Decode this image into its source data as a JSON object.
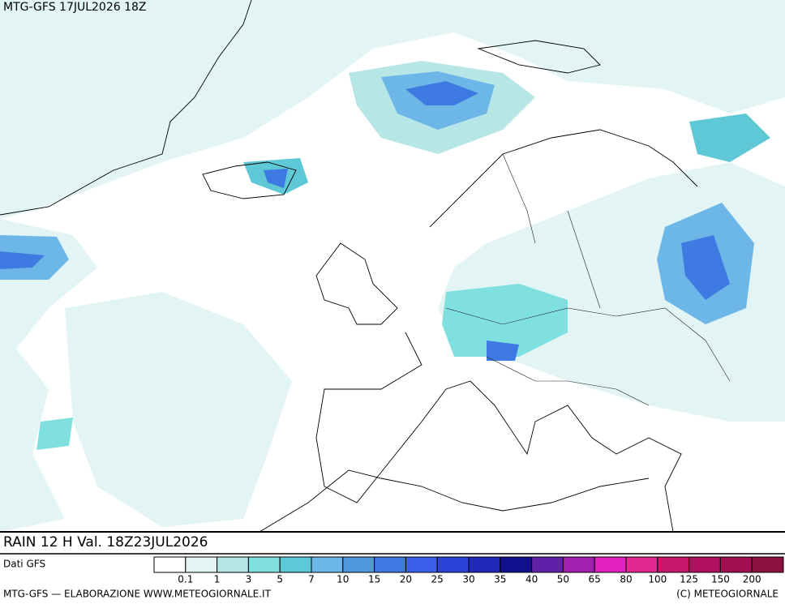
{
  "header": {
    "run": "MTG-GFS 17JUL2026 18Z"
  },
  "title": "RAIN 12 H Val. 18Z23JUL2026",
  "source": "Dati GFS",
  "legend": {
    "labels": [
      "0.1",
      "1",
      "3",
      "5",
      "7",
      "10",
      "15",
      "20",
      "25",
      "30",
      "35",
      "40",
      "50",
      "65",
      "80",
      "100",
      "125",
      "150",
      "200"
    ],
    "colors": [
      "#ffffff",
      "#e2f4f4",
      "#b6e6e6",
      "#80e0e0",
      "#5ec8d6",
      "#6cb6e8",
      "#4e98e0",
      "#3e7ae2",
      "#3c5ee8",
      "#2c42d8",
      "#2028b8",
      "#10108c",
      "#6020a8",
      "#a020b0",
      "#e020c0",
      "#e02890",
      "#c8186c",
      "#b01060",
      "#a01050",
      "#8c1040"
    ]
  },
  "footer": {
    "left": "MTG-GFS — ELABORAZIONE WWW.METEOGIORNALE.IT",
    "right": "(C) METEOGIORNALE"
  }
}
